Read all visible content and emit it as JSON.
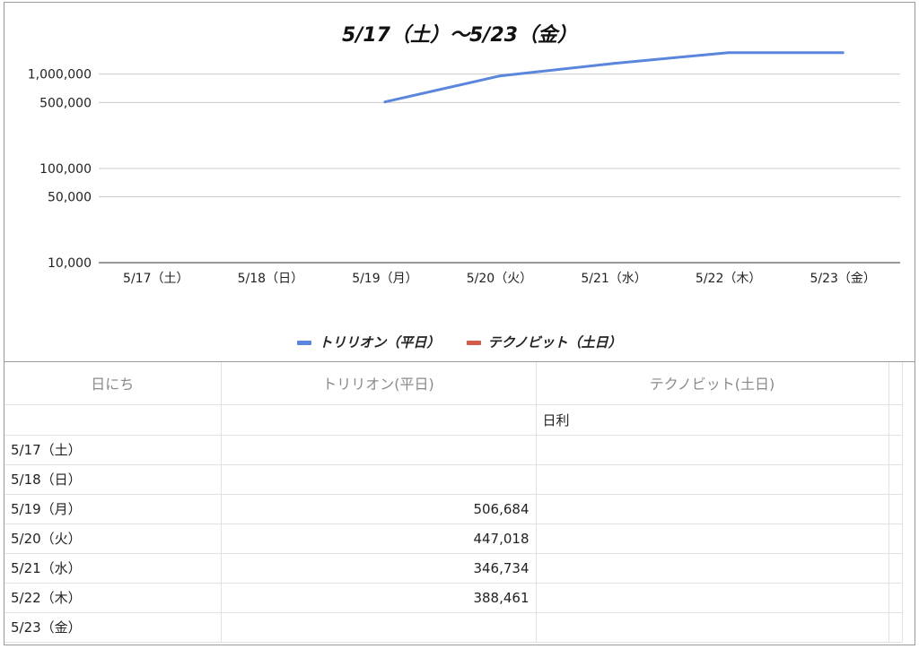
{
  "chart_data": {
    "type": "line",
    "title": "5/17（土）〜5/23（金）",
    "categories": [
      "5/17（土）",
      "5/18（日）",
      "5/19（月）",
      "5/20（火）",
      "5/21（水）",
      "5/22（木）",
      "5/23（金）"
    ],
    "series": [
      {
        "name": "トリリオン（平日）",
        "color": "#5b86dd",
        "values": [
          null,
          null,
          506684,
          953702,
          1300436,
          1688897,
          1688897
        ]
      },
      {
        "name": "テクノビット（土日）",
        "color": "#d35d48",
        "values": [
          null,
          null,
          null,
          null,
          null,
          null,
          null
        ]
      }
    ],
    "yscale": "log",
    "ylim": [
      10000,
      2000000
    ],
    "yticks": [
      {
        "value": 10000,
        "label": "10,000"
      },
      {
        "value": 50000,
        "label": "50,000"
      },
      {
        "value": 100000,
        "label": "100,000"
      },
      {
        "value": 500000,
        "label": "500,000"
      },
      {
        "value": 1000000,
        "label": "1,000,000"
      }
    ],
    "grid": true,
    "legend_position": "bottom"
  },
  "table": {
    "headers": [
      "日にち",
      "トリリオン(平日)",
      "テクノビット(土日)",
      ""
    ],
    "subheader": [
      "",
      "",
      "日利",
      ""
    ],
    "rows": [
      [
        "5/17（土）",
        "",
        "",
        ""
      ],
      [
        "5/18（日）",
        "",
        "",
        ""
      ],
      [
        "5/19（月）",
        "506,684",
        "",
        ""
      ],
      [
        "5/20（火）",
        "447,018",
        "",
        ""
      ],
      [
        "5/21（水）",
        "346,734",
        "",
        ""
      ],
      [
        "5/22（木）",
        "388,461",
        "",
        ""
      ],
      [
        "5/23（金）",
        "",
        "",
        ""
      ]
    ]
  }
}
